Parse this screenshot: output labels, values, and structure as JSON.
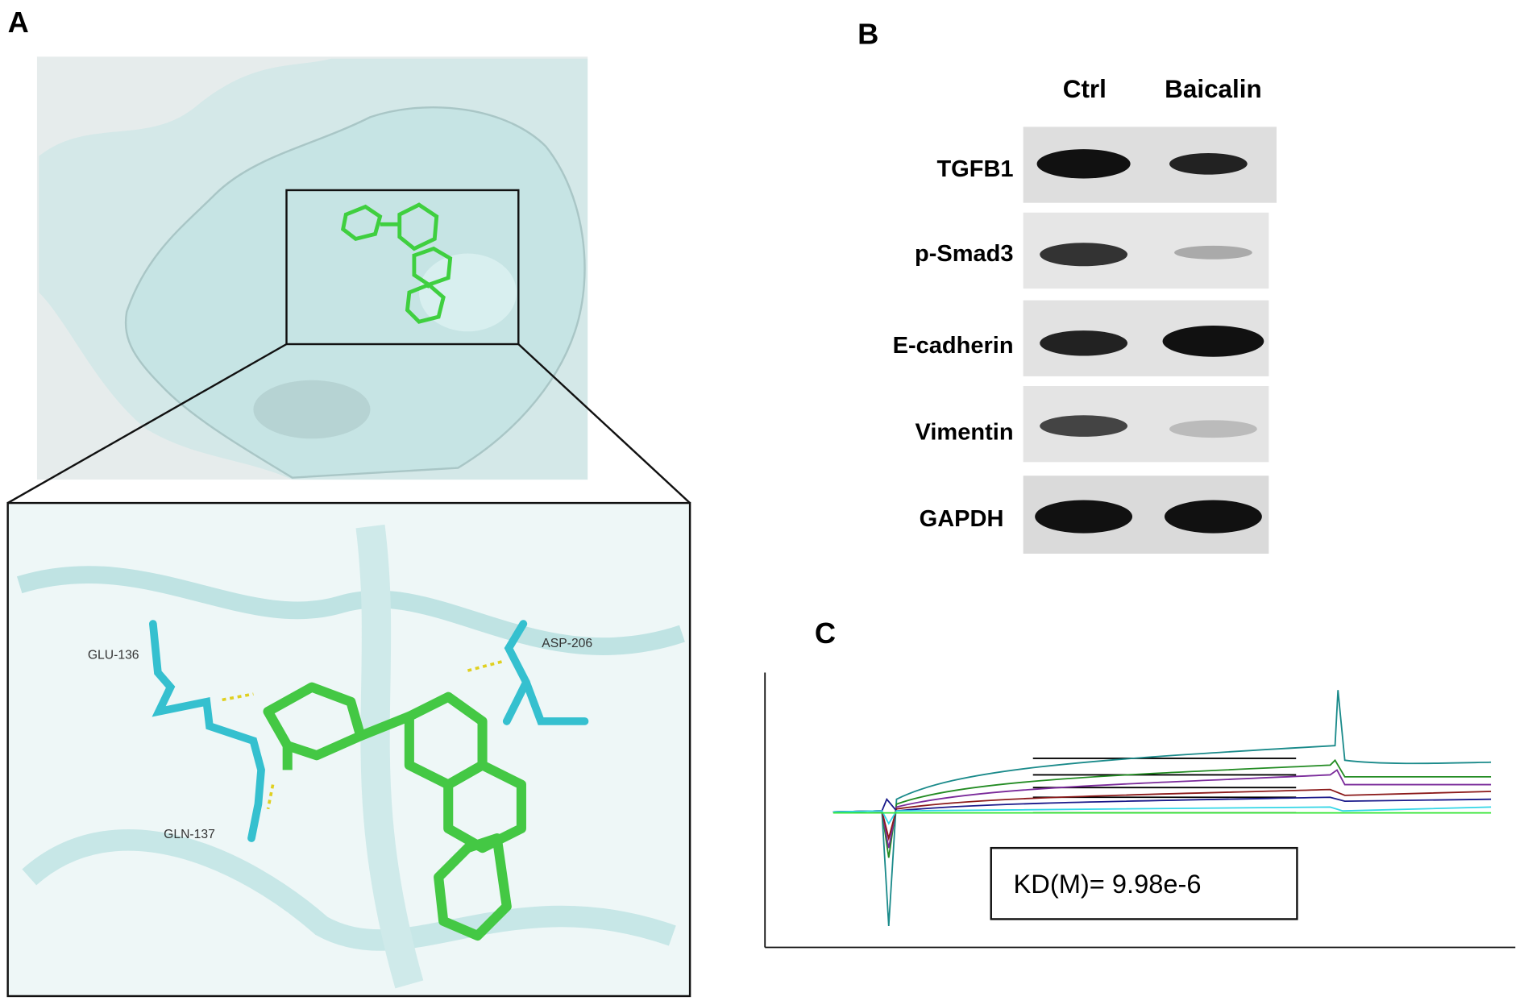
{
  "panels": {
    "a": {
      "label": "A",
      "residues": [
        "GLU-136",
        "ASP-206",
        "GLN-137"
      ]
    },
    "b": {
      "label": "B",
      "columns": [
        "Ctrl",
        "Baicalin"
      ],
      "rows": [
        "TGFB1",
        "p-Smad3",
        "E-cadherin",
        "Vimentin",
        "GAPDH"
      ]
    },
    "c": {
      "label": "C",
      "result": "KD(M)= 9.98e-6"
    }
  }
}
